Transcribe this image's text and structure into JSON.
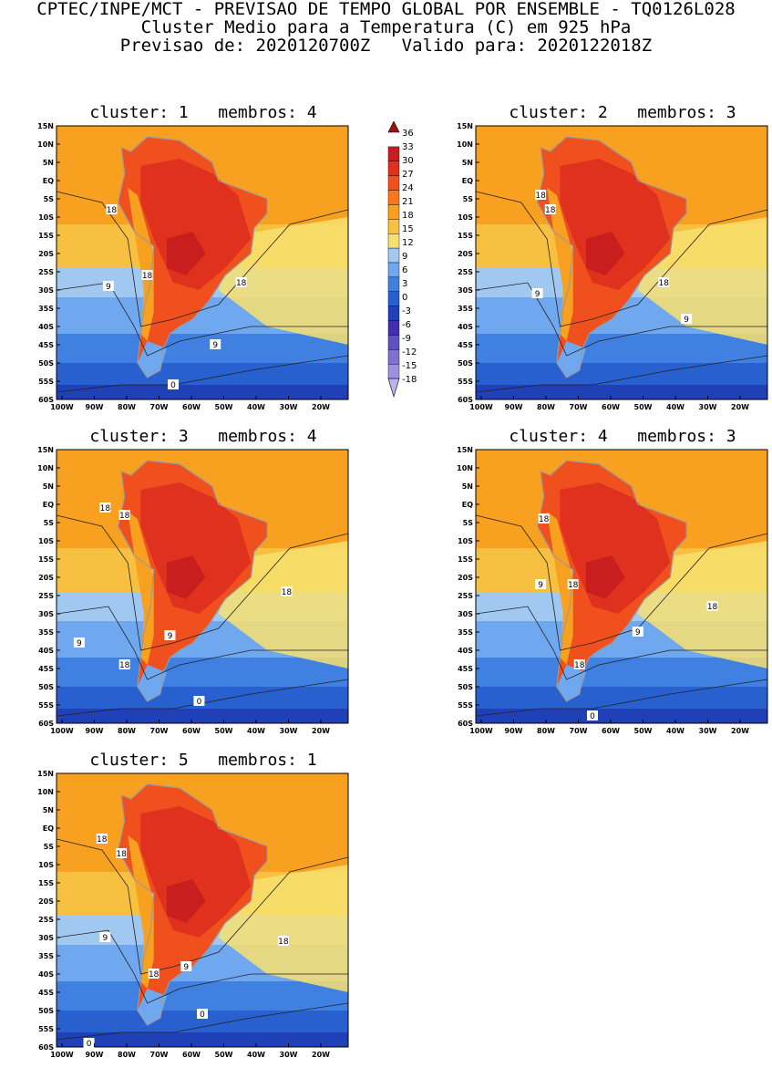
{
  "header": {
    "line1": "CPTEC/INPE/MCT - PREVISAO DE TEMPO GLOBAL POR ENSEMBLE - TQ0126L028",
    "line2": "Cluster Medio para a Temperatura (C) em 925 hPa",
    "line3": "Previsao de: 2020120700Z   Valido para: 2020122018Z"
  },
  "axis": {
    "lat_labels": [
      "15N",
      "10N",
      "5N",
      "EQ",
      "5S",
      "10S",
      "15S",
      "20S",
      "25S",
      "30S",
      "35S",
      "40S",
      "45S",
      "50S",
      "55S",
      "60S"
    ],
    "lon_labels": [
      "100W",
      "90W",
      "80W",
      "70W",
      "60W",
      "50W",
      "40W",
      "30W",
      "20W"
    ]
  },
  "colorbar": {
    "levels": [
      "36",
      "33",
      "30",
      "27",
      "24",
      "21",
      "18",
      "15",
      "12",
      "9",
      "6",
      "3",
      "0",
      "-3",
      "-6",
      "-9",
      "-12",
      "-15",
      "-18"
    ],
    "colors": [
      "#a01010",
      "#c81e1e",
      "#e0301e",
      "#f0501e",
      "#f87820",
      "#f8a020",
      "#f8c040",
      "#f8e070",
      "#a0c8f0",
      "#70a8f0",
      "#4080e0",
      "#2860d0",
      "#2040b8",
      "#4030b0",
      "#6050c0",
      "#8070d0",
      "#a090e0",
      "#c0b0f0"
    ]
  },
  "panels": [
    {
      "title": "cluster: 1   membros: 4",
      "contour_labels": [
        "18",
        "18",
        "18",
        "9",
        "9",
        "0"
      ]
    },
    {
      "title": "cluster: 2   membros: 3",
      "contour_labels": [
        "18",
        "18",
        "18",
        "9",
        "9"
      ]
    },
    {
      "title": "cluster: 3   membros: 4",
      "contour_labels": [
        "18",
        "18",
        "18",
        "18",
        "9",
        "9",
        "0"
      ]
    },
    {
      "title": "cluster: 4   membros: 3",
      "contour_labels": [
        "18",
        "18",
        "18",
        "18",
        "9",
        "9",
        "0"
      ]
    },
    {
      "title": "cluster: 5   membros: 1",
      "contour_labels": [
        "18",
        "18",
        "18",
        "18",
        "9",
        "9",
        "0",
        "0"
      ]
    }
  ]
}
